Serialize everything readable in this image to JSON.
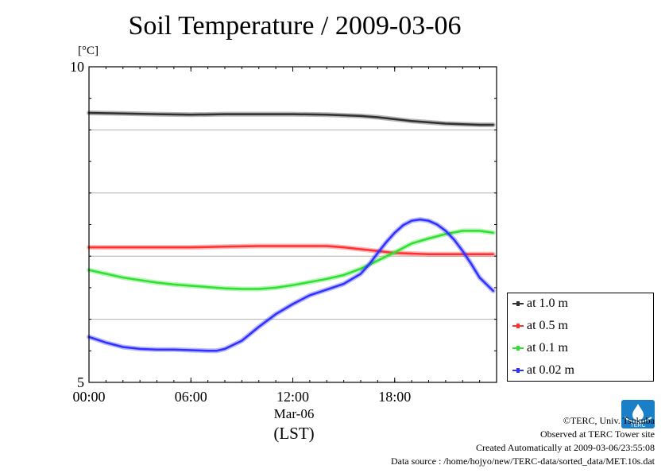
{
  "title": "Soil Temperature / 2009-03-06",
  "chart_data": {
    "type": "line",
    "title": "Soil Temperature / 2009-03-06",
    "ylabel": "[°C]",
    "ylim": [
      5,
      10
    ],
    "y_tick_labels": [
      "5",
      "10"
    ],
    "y_gridlines": [
      6,
      7,
      8,
      9
    ],
    "xlim": [
      0,
      24
    ],
    "x_ticks": [
      0,
      6,
      12,
      18
    ],
    "x_tick_labels": [
      "00:00",
      "06:00",
      "12:00",
      "18:00"
    ],
    "x_date_label": "Mar-06",
    "x_zone_label": "(LST)",
    "legend_position": "right",
    "series": [
      {
        "name": "at 1.0 m",
        "color": "#303030",
        "x": [
          0,
          2,
          4,
          6,
          8,
          10,
          12,
          14,
          16,
          17,
          18,
          19,
          20,
          21,
          22,
          23,
          23.8
        ],
        "y": [
          9.27,
          9.26,
          9.25,
          9.24,
          9.25,
          9.25,
          9.25,
          9.24,
          9.22,
          9.2,
          9.17,
          9.14,
          9.12,
          9.1,
          9.09,
          9.08,
          9.08
        ]
      },
      {
        "name": "at 0.5 m",
        "color": "#ff3030",
        "x": [
          0,
          2,
          4,
          6,
          8,
          10,
          12,
          14,
          15,
          16,
          17,
          18,
          19,
          20,
          21,
          22,
          23,
          23.8
        ],
        "y": [
          7.14,
          7.14,
          7.14,
          7.14,
          7.15,
          7.16,
          7.16,
          7.16,
          7.14,
          7.11,
          7.08,
          7.05,
          7.04,
          7.03,
          7.03,
          7.03,
          7.03,
          7.03
        ]
      },
      {
        "name": "at 0.1 m",
        "color": "#30e030",
        "x": [
          0,
          1,
          2,
          3,
          4,
          5,
          6,
          7,
          8,
          9,
          10,
          11,
          12,
          13,
          14,
          15,
          16,
          17,
          18,
          19,
          20,
          21,
          22,
          23,
          23.8
        ],
        "y": [
          6.78,
          6.72,
          6.66,
          6.62,
          6.58,
          6.55,
          6.53,
          6.51,
          6.49,
          6.48,
          6.48,
          6.5,
          6.54,
          6.59,
          6.64,
          6.7,
          6.8,
          6.93,
          7.06,
          7.2,
          7.28,
          7.35,
          7.4,
          7.4,
          7.37
        ]
      },
      {
        "name": "at 0.02 m",
        "color": "#3030ff",
        "x": [
          0,
          1,
          2,
          3,
          4,
          5,
          6,
          7,
          7.5,
          8,
          9,
          10,
          11,
          12,
          13,
          14,
          15,
          16,
          16.5,
          17,
          17.5,
          18,
          18.5,
          19,
          19.5,
          20,
          20.5,
          21,
          21.5,
          22,
          22.5,
          23,
          23.8
        ],
        "y": [
          5.72,
          5.63,
          5.56,
          5.53,
          5.52,
          5.52,
          5.51,
          5.5,
          5.5,
          5.53,
          5.66,
          5.88,
          6.08,
          6.24,
          6.38,
          6.47,
          6.56,
          6.72,
          6.87,
          7.05,
          7.22,
          7.37,
          7.49,
          7.56,
          7.58,
          7.56,
          7.5,
          7.4,
          7.26,
          7.08,
          6.88,
          6.66,
          6.45
        ]
      }
    ]
  },
  "footer": {
    "copyright": "©TERC, Univ. Tsukuba",
    "site": "Observed at TERC Tower site",
    "created": "Created Automatically at 2009-03-06/23:55:08",
    "source": "Data source : /home/hojyo/new/TERC-data/sorted_data/MET.10s.dat"
  },
  "logo": {
    "icon": "terc-logo-icon",
    "text": "TERC",
    "color": "#1a7fc7"
  }
}
